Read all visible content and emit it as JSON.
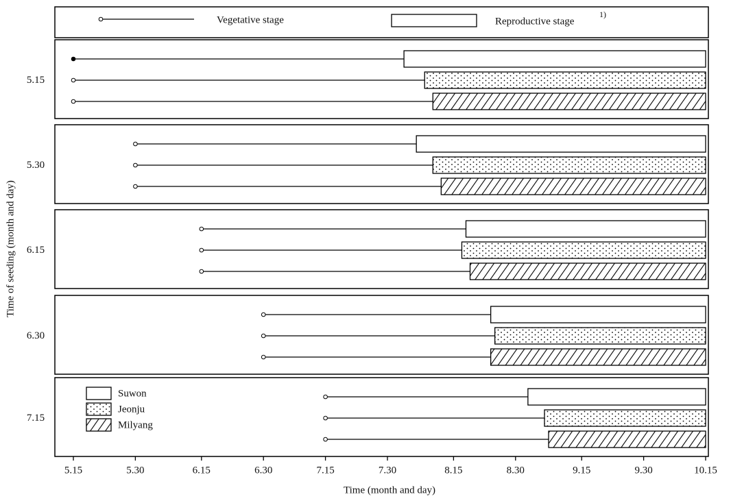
{
  "chart_data": {
    "type": "gantt",
    "legend_top": {
      "vegetative": "Vegetative stage",
      "reproductive": "Reproductive stage",
      "reproductive_note": "1)"
    },
    "ylabel": "Time of seeding (month and day)",
    "xlabel": "Time (month and day)",
    "categories": [
      "5.15",
      "5.30",
      "6.15",
      "6.30",
      "7.15"
    ],
    "seeding": [
      135,
      150,
      166,
      181,
      196
    ],
    "series": [
      {
        "name": "Suwon",
        "color": "#000000",
        "pattern": "none",
        "values": [
          215,
          218,
          230,
          236,
          245
        ],
        "end": [
          288,
          288,
          288,
          288,
          288
        ]
      },
      {
        "name": "Jeonju",
        "color": "#000000",
        "pattern": "dots",
        "values": [
          220,
          222,
          229,
          237,
          249
        ],
        "end": [
          288,
          288,
          288,
          288,
          288
        ]
      },
      {
        "name": "Milyang",
        "color": "#000000",
        "pattern": "hatch",
        "values": [
          222,
          224,
          231,
          236,
          250
        ],
        "end": [
          288,
          288,
          288,
          288,
          288
        ]
      }
    ],
    "xlim": [
      135,
      288
    ],
    "xticks": [
      {
        "value": 135,
        "label": "5.15"
      },
      {
        "value": 150,
        "label": "5.30"
      },
      {
        "value": 166,
        "label": "6.15"
      },
      {
        "value": 181,
        "label": "6.30"
      },
      {
        "value": 196,
        "label": "7.15"
      },
      {
        "value": 211,
        "label": "7.30"
      },
      {
        "value": 227,
        "label": "8.15"
      },
      {
        "value": 242,
        "label": "8.30"
      },
      {
        "value": 258,
        "label": "9.15"
      },
      {
        "value": 273,
        "label": "9.30"
      },
      {
        "value": 288,
        "label": "10.15"
      }
    ]
  }
}
